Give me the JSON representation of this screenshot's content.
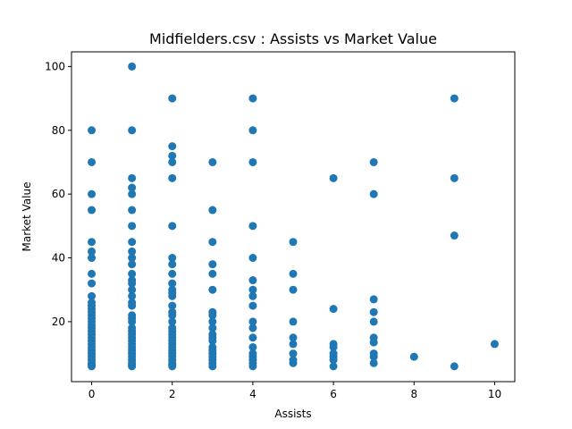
{
  "chart_data": {
    "type": "scatter",
    "title": "Midfielders.csv : Assists vs Market Value",
    "xlabel": "Assists",
    "ylabel": "Market Value",
    "xlim": [
      -0.5,
      10.5
    ],
    "ylim": [
      1.2,
      104.6
    ],
    "xticks": [
      0,
      2,
      4,
      6,
      8,
      10
    ],
    "yticks": [
      20,
      40,
      60,
      80,
      100
    ],
    "grid": false,
    "marker_color": "#1f77b4",
    "points": [
      {
        "x": 0,
        "y": 80
      },
      {
        "x": 0,
        "y": 70
      },
      {
        "x": 0,
        "y": 60
      },
      {
        "x": 0,
        "y": 55
      },
      {
        "x": 0,
        "y": 45
      },
      {
        "x": 0,
        "y": 42
      },
      {
        "x": 0,
        "y": 40
      },
      {
        "x": 0,
        "y": 35
      },
      {
        "x": 0,
        "y": 32
      },
      {
        "x": 0,
        "y": 28
      },
      {
        "x": 0,
        "y": 26
      },
      {
        "x": 0,
        "y": 25
      },
      {
        "x": 0,
        "y": 24
      },
      {
        "x": 0,
        "y": 23
      },
      {
        "x": 0,
        "y": 22
      },
      {
        "x": 0,
        "y": 21
      },
      {
        "x": 0,
        "y": 20
      },
      {
        "x": 0,
        "y": 19
      },
      {
        "x": 0,
        "y": 18
      },
      {
        "x": 0,
        "y": 17
      },
      {
        "x": 0,
        "y": 16
      },
      {
        "x": 0,
        "y": 15
      },
      {
        "x": 0,
        "y": 14
      },
      {
        "x": 0,
        "y": 13
      },
      {
        "x": 0,
        "y": 12
      },
      {
        "x": 0,
        "y": 11
      },
      {
        "x": 0,
        "y": 10
      },
      {
        "x": 0,
        "y": 9
      },
      {
        "x": 0,
        "y": 8
      },
      {
        "x": 0,
        "y": 7
      },
      {
        "x": 0,
        "y": 6.5
      },
      {
        "x": 0,
        "y": 6
      },
      {
        "x": 1,
        "y": 100
      },
      {
        "x": 1,
        "y": 80
      },
      {
        "x": 1,
        "y": 65
      },
      {
        "x": 1,
        "y": 62
      },
      {
        "x": 1,
        "y": 60
      },
      {
        "x": 1,
        "y": 55
      },
      {
        "x": 1,
        "y": 50
      },
      {
        "x": 1,
        "y": 45
      },
      {
        "x": 1,
        "y": 42
      },
      {
        "x": 1,
        "y": 40
      },
      {
        "x": 1,
        "y": 38
      },
      {
        "x": 1,
        "y": 35
      },
      {
        "x": 1,
        "y": 33
      },
      {
        "x": 1,
        "y": 32
      },
      {
        "x": 1,
        "y": 30
      },
      {
        "x": 1,
        "y": 28
      },
      {
        "x": 1,
        "y": 26
      },
      {
        "x": 1,
        "y": 25
      },
      {
        "x": 1,
        "y": 22
      },
      {
        "x": 1,
        "y": 21
      },
      {
        "x": 1,
        "y": 20
      },
      {
        "x": 1,
        "y": 18
      },
      {
        "x": 1,
        "y": 17
      },
      {
        "x": 1,
        "y": 16
      },
      {
        "x": 1,
        "y": 15
      },
      {
        "x": 1,
        "y": 14
      },
      {
        "x": 1,
        "y": 13
      },
      {
        "x": 1,
        "y": 12
      },
      {
        "x": 1,
        "y": 11
      },
      {
        "x": 1,
        "y": 10
      },
      {
        "x": 1,
        "y": 9
      },
      {
        "x": 1,
        "y": 8
      },
      {
        "x": 1,
        "y": 7
      },
      {
        "x": 1,
        "y": 6.5
      },
      {
        "x": 1,
        "y": 6
      },
      {
        "x": 2,
        "y": 90
      },
      {
        "x": 2,
        "y": 75
      },
      {
        "x": 2,
        "y": 72
      },
      {
        "x": 2,
        "y": 70
      },
      {
        "x": 2,
        "y": 65
      },
      {
        "x": 2,
        "y": 50
      },
      {
        "x": 2,
        "y": 40
      },
      {
        "x": 2,
        "y": 38
      },
      {
        "x": 2,
        "y": 35
      },
      {
        "x": 2,
        "y": 32
      },
      {
        "x": 2,
        "y": 30
      },
      {
        "x": 2,
        "y": 29
      },
      {
        "x": 2,
        "y": 28
      },
      {
        "x": 2,
        "y": 25
      },
      {
        "x": 2,
        "y": 23
      },
      {
        "x": 2,
        "y": 22
      },
      {
        "x": 2,
        "y": 20
      },
      {
        "x": 2,
        "y": 18
      },
      {
        "x": 2,
        "y": 17
      },
      {
        "x": 2,
        "y": 16
      },
      {
        "x": 2,
        "y": 15
      },
      {
        "x": 2,
        "y": 14
      },
      {
        "x": 2,
        "y": 13
      },
      {
        "x": 2,
        "y": 12
      },
      {
        "x": 2,
        "y": 11
      },
      {
        "x": 2,
        "y": 10
      },
      {
        "x": 2,
        "y": 9
      },
      {
        "x": 2,
        "y": 8
      },
      {
        "x": 2,
        "y": 7
      },
      {
        "x": 2,
        "y": 6.5
      },
      {
        "x": 2,
        "y": 6
      },
      {
        "x": 3,
        "y": 70
      },
      {
        "x": 3,
        "y": 55
      },
      {
        "x": 3,
        "y": 45
      },
      {
        "x": 3,
        "y": 38
      },
      {
        "x": 3,
        "y": 35
      },
      {
        "x": 3,
        "y": 30
      },
      {
        "x": 3,
        "y": 23
      },
      {
        "x": 3,
        "y": 22
      },
      {
        "x": 3,
        "y": 20
      },
      {
        "x": 3,
        "y": 18
      },
      {
        "x": 3,
        "y": 16
      },
      {
        "x": 3,
        "y": 15
      },
      {
        "x": 3,
        "y": 14
      },
      {
        "x": 3,
        "y": 12
      },
      {
        "x": 3,
        "y": 11
      },
      {
        "x": 3,
        "y": 10
      },
      {
        "x": 3,
        "y": 9
      },
      {
        "x": 3,
        "y": 8
      },
      {
        "x": 3,
        "y": 7
      },
      {
        "x": 3,
        "y": 6
      },
      {
        "x": 4,
        "y": 90
      },
      {
        "x": 4,
        "y": 80
      },
      {
        "x": 4,
        "y": 70
      },
      {
        "x": 4,
        "y": 50
      },
      {
        "x": 4,
        "y": 40
      },
      {
        "x": 4,
        "y": 33
      },
      {
        "x": 4,
        "y": 30
      },
      {
        "x": 4,
        "y": 28
      },
      {
        "x": 4,
        "y": 25
      },
      {
        "x": 4,
        "y": 20
      },
      {
        "x": 4,
        "y": 18
      },
      {
        "x": 4,
        "y": 15
      },
      {
        "x": 4,
        "y": 12
      },
      {
        "x": 4,
        "y": 10
      },
      {
        "x": 4,
        "y": 9
      },
      {
        "x": 4,
        "y": 8
      },
      {
        "x": 4,
        "y": 7
      },
      {
        "x": 4,
        "y": 6
      },
      {
        "x": 5,
        "y": 45
      },
      {
        "x": 5,
        "y": 35
      },
      {
        "x": 5,
        "y": 30
      },
      {
        "x": 5,
        "y": 20
      },
      {
        "x": 5,
        "y": 15
      },
      {
        "x": 5,
        "y": 13
      },
      {
        "x": 5,
        "y": 10
      },
      {
        "x": 5,
        "y": 8
      },
      {
        "x": 5,
        "y": 7
      },
      {
        "x": 6,
        "y": 65
      },
      {
        "x": 6,
        "y": 24
      },
      {
        "x": 6,
        "y": 13
      },
      {
        "x": 6,
        "y": 12
      },
      {
        "x": 6,
        "y": 10
      },
      {
        "x": 6,
        "y": 9
      },
      {
        "x": 6,
        "y": 8
      },
      {
        "x": 6,
        "y": 6
      },
      {
        "x": 7,
        "y": 70
      },
      {
        "x": 7,
        "y": 60
      },
      {
        "x": 7,
        "y": 27
      },
      {
        "x": 7,
        "y": 23
      },
      {
        "x": 7,
        "y": 20
      },
      {
        "x": 7,
        "y": 15
      },
      {
        "x": 7,
        "y": 13.5
      },
      {
        "x": 7,
        "y": 10
      },
      {
        "x": 7,
        "y": 9
      },
      {
        "x": 7,
        "y": 7
      },
      {
        "x": 8,
        "y": 9
      },
      {
        "x": 9,
        "y": 90
      },
      {
        "x": 9,
        "y": 65
      },
      {
        "x": 9,
        "y": 47
      },
      {
        "x": 9,
        "y": 6
      },
      {
        "x": 10,
        "y": 13
      }
    ]
  }
}
